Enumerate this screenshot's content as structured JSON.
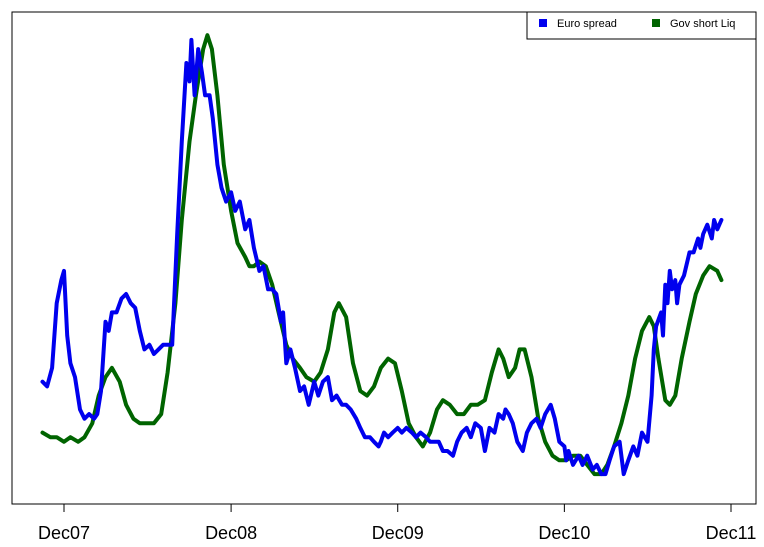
{
  "chart_data": {
    "type": "line",
    "title": "",
    "xlabel": "",
    "ylabel": "",
    "x_ticks": [
      "Dec07",
      "Dec08",
      "Dec09",
      "Dec10",
      "Dec11"
    ],
    "x_tick_dates": [
      "2007-12",
      "2008-12",
      "2009-12",
      "2010-12",
      "2011-12"
    ],
    "legend_position": "top-right",
    "grid": false,
    "y_axis_shown": false,
    "note": "y axis has no tick labels; values are relative chart levels",
    "ylim": [
      0,
      100
    ],
    "series": [
      {
        "name": "Euro spread",
        "color": "#0000ee",
        "points": [
          [
            "2007-10-15",
            23
          ],
          [
            "2007-10-25",
            22
          ],
          [
            "2007-11-05",
            26
          ],
          [
            "2007-11-15",
            40
          ],
          [
            "2007-11-25",
            45
          ],
          [
            "2007-12-01",
            47
          ],
          [
            "2007-12-08",
            33
          ],
          [
            "2007-12-15",
            27
          ],
          [
            "2007-12-25",
            24
          ],
          [
            "2008-01-05",
            17
          ],
          [
            "2008-01-15",
            15
          ],
          [
            "2008-01-25",
            16
          ],
          [
            "2008-02-05",
            15
          ],
          [
            "2008-02-12",
            16
          ],
          [
            "2008-02-20",
            21
          ],
          [
            "2008-03-01",
            36
          ],
          [
            "2008-03-08",
            34
          ],
          [
            "2008-03-15",
            38
          ],
          [
            "2008-03-25",
            38
          ],
          [
            "2008-04-05",
            41
          ],
          [
            "2008-04-15",
            42
          ],
          [
            "2008-04-25",
            40
          ],
          [
            "2008-05-05",
            39
          ],
          [
            "2008-05-15",
            34
          ],
          [
            "2008-05-25",
            30
          ],
          [
            "2008-06-05",
            31
          ],
          [
            "2008-06-15",
            29
          ],
          [
            "2008-06-25",
            30
          ],
          [
            "2008-07-05",
            31
          ],
          [
            "2008-07-15",
            31
          ],
          [
            "2008-07-25",
            31
          ],
          [
            "2008-08-05",
            55
          ],
          [
            "2008-08-15",
            75
          ],
          [
            "2008-08-25",
            92
          ],
          [
            "2008-09-01",
            88
          ],
          [
            "2008-09-05",
            97
          ],
          [
            "2008-09-12",
            85
          ],
          [
            "2008-09-20",
            95
          ],
          [
            "2008-09-28",
            90
          ],
          [
            "2008-10-05",
            85
          ],
          [
            "2008-10-15",
            85
          ],
          [
            "2008-10-22",
            80
          ],
          [
            "2008-11-01",
            70
          ],
          [
            "2008-11-10",
            65
          ],
          [
            "2008-11-20",
            62
          ],
          [
            "2008-12-01",
            64
          ],
          [
            "2008-12-10",
            60
          ],
          [
            "2008-12-20",
            62
          ],
          [
            "2009-01-01",
            56
          ],
          [
            "2009-01-10",
            58
          ],
          [
            "2009-01-20",
            52
          ],
          [
            "2009-02-01",
            47
          ],
          [
            "2009-02-10",
            48
          ],
          [
            "2009-02-20",
            43
          ],
          [
            "2009-03-01",
            43
          ],
          [
            "2009-03-10",
            42
          ],
          [
            "2009-03-20",
            36
          ],
          [
            "2009-03-25",
            38
          ],
          [
            "2009-04-01",
            27
          ],
          [
            "2009-04-10",
            30
          ],
          [
            "2009-04-20",
            26
          ],
          [
            "2009-05-01",
            21
          ],
          [
            "2009-05-10",
            22
          ],
          [
            "2009-05-20",
            18
          ],
          [
            "2009-06-01",
            23
          ],
          [
            "2009-06-10",
            20
          ],
          [
            "2009-06-20",
            23
          ],
          [
            "2009-07-01",
            24
          ],
          [
            "2009-07-10",
            19
          ],
          [
            "2009-07-20",
            20
          ],
          [
            "2009-08-01",
            18
          ],
          [
            "2009-08-10",
            18
          ],
          [
            "2009-08-20",
            17
          ],
          [
            "2009-09-01",
            15
          ],
          [
            "2009-09-10",
            13
          ],
          [
            "2009-09-20",
            11
          ],
          [
            "2009-10-01",
            11
          ],
          [
            "2009-10-10",
            10
          ],
          [
            "2009-10-20",
            9
          ],
          [
            "2009-10-25",
            10
          ],
          [
            "2009-11-01",
            12
          ],
          [
            "2009-11-10",
            11
          ],
          [
            "2009-11-20",
            12
          ],
          [
            "2009-12-01",
            13
          ],
          [
            "2009-12-10",
            12
          ],
          [
            "2009-12-20",
            13
          ],
          [
            "2010-01-01",
            12
          ],
          [
            "2010-01-10",
            11
          ],
          [
            "2010-01-20",
            12
          ],
          [
            "2010-02-01",
            11
          ],
          [
            "2010-02-10",
            10
          ],
          [
            "2010-02-20",
            10
          ],
          [
            "2010-03-01",
            10
          ],
          [
            "2010-03-10",
            8
          ],
          [
            "2010-03-20",
            8
          ],
          [
            "2010-04-01",
            7
          ],
          [
            "2010-04-10",
            10
          ],
          [
            "2010-04-20",
            12
          ],
          [
            "2010-05-01",
            13
          ],
          [
            "2010-05-10",
            11
          ],
          [
            "2010-05-20",
            14
          ],
          [
            "2010-06-01",
            13
          ],
          [
            "2010-06-10",
            8
          ],
          [
            "2010-06-20",
            13
          ],
          [
            "2010-07-01",
            12
          ],
          [
            "2010-07-10",
            16
          ],
          [
            "2010-07-20",
            15
          ],
          [
            "2010-07-25",
            17
          ],
          [
            "2010-08-01",
            16
          ],
          [
            "2010-08-10",
            14
          ],
          [
            "2010-08-20",
            10
          ],
          [
            "2010-09-01",
            8
          ],
          [
            "2010-09-10",
            12
          ],
          [
            "2010-09-20",
            14
          ],
          [
            "2010-10-01",
            15
          ],
          [
            "2010-10-10",
            13
          ],
          [
            "2010-10-20",
            16
          ],
          [
            "2010-11-01",
            18
          ],
          [
            "2010-11-10",
            15
          ],
          [
            "2010-11-20",
            10
          ],
          [
            "2010-12-01",
            9
          ],
          [
            "2010-12-05",
            6
          ],
          [
            "2010-12-10",
            8
          ],
          [
            "2010-12-20",
            5
          ],
          [
            "2011-01-01",
            7
          ],
          [
            "2011-01-10",
            5
          ],
          [
            "2011-01-20",
            7
          ],
          [
            "2011-02-01",
            4
          ],
          [
            "2011-02-10",
            5
          ],
          [
            "2011-02-20",
            3
          ],
          [
            "2011-03-01",
            3
          ],
          [
            "2011-03-10",
            6
          ],
          [
            "2011-03-20",
            9
          ],
          [
            "2011-04-01",
            10
          ],
          [
            "2011-04-10",
            3
          ],
          [
            "2011-04-20",
            6
          ],
          [
            "2011-05-01",
            9
          ],
          [
            "2011-05-10",
            7
          ],
          [
            "2011-05-20",
            12
          ],
          [
            "2011-06-01",
            10
          ],
          [
            "2011-06-10",
            20
          ],
          [
            "2011-06-15",
            30
          ],
          [
            "2011-06-20",
            35
          ],
          [
            "2011-07-01",
            38
          ],
          [
            "2011-07-05",
            33
          ],
          [
            "2011-07-10",
            44
          ],
          [
            "2011-07-15",
            40
          ],
          [
            "2011-07-20",
            47
          ],
          [
            "2011-07-25",
            43
          ],
          [
            "2011-08-01",
            45
          ],
          [
            "2011-08-05",
            40
          ],
          [
            "2011-08-10",
            44
          ],
          [
            "2011-08-20",
            46
          ],
          [
            "2011-09-01",
            51
          ],
          [
            "2011-09-10",
            51
          ],
          [
            "2011-09-20",
            54
          ],
          [
            "2011-09-25",
            52
          ],
          [
            "2011-10-01",
            55
          ],
          [
            "2011-10-10",
            57
          ],
          [
            "2011-10-20",
            54
          ],
          [
            "2011-10-25",
            58
          ],
          [
            "2011-11-01",
            56
          ],
          [
            "2011-11-10",
            58
          ]
        ]
      },
      {
        "name": "Gov short Liq",
        "color": "#006400",
        "points": [
          [
            "2007-10-15",
            12
          ],
          [
            "2007-11-01",
            11
          ],
          [
            "2007-11-15",
            11
          ],
          [
            "2007-12-01",
            10
          ],
          [
            "2007-12-15",
            11
          ],
          [
            "2008-01-01",
            10
          ],
          [
            "2008-01-15",
            11
          ],
          [
            "2008-02-01",
            14
          ],
          [
            "2008-02-15",
            20
          ],
          [
            "2008-03-01",
            24
          ],
          [
            "2008-03-15",
            26
          ],
          [
            "2008-04-01",
            23
          ],
          [
            "2008-04-15",
            18
          ],
          [
            "2008-05-01",
            15
          ],
          [
            "2008-05-15",
            14
          ],
          [
            "2008-06-01",
            14
          ],
          [
            "2008-06-15",
            14
          ],
          [
            "2008-07-01",
            16
          ],
          [
            "2008-07-15",
            25
          ],
          [
            "2008-08-01",
            40
          ],
          [
            "2008-08-15",
            58
          ],
          [
            "2008-09-01",
            75
          ],
          [
            "2008-09-15",
            85
          ],
          [
            "2008-10-01",
            95
          ],
          [
            "2008-10-10",
            98
          ],
          [
            "2008-10-20",
            95
          ],
          [
            "2008-11-01",
            85
          ],
          [
            "2008-11-15",
            70
          ],
          [
            "2008-12-01",
            60
          ],
          [
            "2008-12-15",
            53
          ],
          [
            "2009-01-01",
            50
          ],
          [
            "2009-01-10",
            48
          ],
          [
            "2009-01-20",
            48
          ],
          [
            "2009-02-01",
            49
          ],
          [
            "2009-02-15",
            48
          ],
          [
            "2009-03-01",
            44
          ],
          [
            "2009-03-15",
            38
          ],
          [
            "2009-04-01",
            31
          ],
          [
            "2009-04-15",
            28
          ],
          [
            "2009-05-01",
            26
          ],
          [
            "2009-05-15",
            24
          ],
          [
            "2009-06-01",
            23
          ],
          [
            "2009-06-15",
            25
          ],
          [
            "2009-07-01",
            30
          ],
          [
            "2009-07-15",
            38
          ],
          [
            "2009-07-25",
            40
          ],
          [
            "2009-08-10",
            37
          ],
          [
            "2009-08-25",
            27
          ],
          [
            "2009-09-10",
            21
          ],
          [
            "2009-09-25",
            20
          ],
          [
            "2009-10-10",
            22
          ],
          [
            "2009-10-25",
            26
          ],
          [
            "2009-11-10",
            28
          ],
          [
            "2009-11-25",
            27
          ],
          [
            "2009-12-10",
            21
          ],
          [
            "2009-12-25",
            14
          ],
          [
            "2010-01-10",
            11
          ],
          [
            "2010-01-25",
            9
          ],
          [
            "2010-02-10",
            12
          ],
          [
            "2010-02-25",
            17
          ],
          [
            "2010-03-10",
            19
          ],
          [
            "2010-03-25",
            18
          ],
          [
            "2010-04-10",
            16
          ],
          [
            "2010-04-25",
            16
          ],
          [
            "2010-05-10",
            18
          ],
          [
            "2010-05-25",
            18
          ],
          [
            "2010-06-10",
            19
          ],
          [
            "2010-06-25",
            25
          ],
          [
            "2010-07-10",
            30
          ],
          [
            "2010-07-20",
            28
          ],
          [
            "2010-08-01",
            24
          ],
          [
            "2010-08-15",
            26
          ],
          [
            "2010-08-25",
            30
          ],
          [
            "2010-09-05",
            30
          ],
          [
            "2010-09-20",
            24
          ],
          [
            "2010-10-05",
            15
          ],
          [
            "2010-10-20",
            10
          ],
          [
            "2010-11-05",
            7
          ],
          [
            "2010-11-20",
            6
          ],
          [
            "2010-12-05",
            6
          ],
          [
            "2010-12-20",
            7
          ],
          [
            "2011-01-05",
            7
          ],
          [
            "2011-01-20",
            5
          ],
          [
            "2011-02-05",
            3
          ],
          [
            "2011-02-20",
            3
          ],
          [
            "2011-03-05",
            5
          ],
          [
            "2011-03-20",
            9
          ],
          [
            "2011-04-05",
            14
          ],
          [
            "2011-04-20",
            20
          ],
          [
            "2011-05-05",
            28
          ],
          [
            "2011-05-20",
            34
          ],
          [
            "2011-06-05",
            37
          ],
          [
            "2011-06-15",
            35
          ],
          [
            "2011-06-25",
            28
          ],
          [
            "2011-07-10",
            19
          ],
          [
            "2011-07-20",
            18
          ],
          [
            "2011-08-01",
            20
          ],
          [
            "2011-08-15",
            28
          ],
          [
            "2011-09-01",
            36
          ],
          [
            "2011-09-15",
            42
          ],
          [
            "2011-10-01",
            46
          ],
          [
            "2011-10-15",
            48
          ],
          [
            "2011-11-01",
            47
          ],
          [
            "2011-11-10",
            45
          ]
        ]
      }
    ]
  }
}
